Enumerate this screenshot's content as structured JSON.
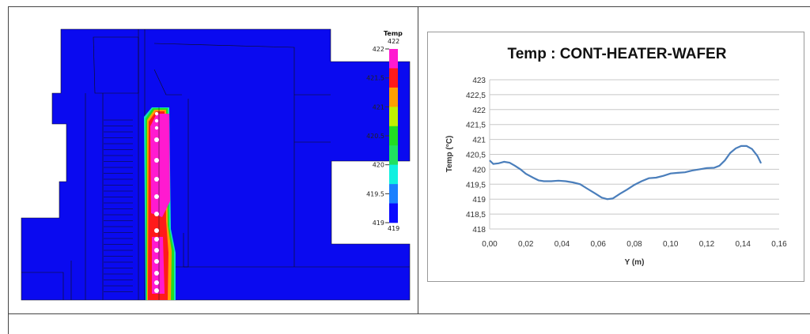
{
  "simulation": {
    "legend": {
      "title": "Temp",
      "max_label": "422",
      "min_label": "419",
      "ticks": [
        "422",
        "421.5",
        "421",
        "420.5",
        "420",
        "419.5",
        "419"
      ],
      "colors": [
        "#ff1ad0",
        "#ff1a1a",
        "#ff9f00",
        "#c0f000",
        "#22dd22",
        "#20e060",
        "#10f0e0",
        "#1a80ff",
        "#0a0aff"
      ]
    },
    "colors": {
      "background_solid": "#0a0af0",
      "hot": "#ff1ad0"
    }
  },
  "chart_data": {
    "type": "line",
    "title": "Temp : CONT-HEATER-WAFER",
    "xlabel": "Y (m)",
    "ylabel": "Temp (°C)",
    "xlim": [
      0,
      0.16
    ],
    "ylim": [
      418,
      423
    ],
    "x_ticks": [
      "0,00",
      "0,02",
      "0,04",
      "0,06",
      "0,08",
      "0,10",
      "0,12",
      "0,14",
      "0,16"
    ],
    "y_ticks": [
      "418",
      "418,5",
      "419",
      "419,5",
      "420",
      "420,5",
      "421",
      "421,5",
      "422",
      "422,5",
      "423"
    ],
    "grid": "horizontal",
    "line_color": "#4a7ebb",
    "x": [
      0.0,
      0.002,
      0.005,
      0.008,
      0.011,
      0.014,
      0.017,
      0.02,
      0.024,
      0.027,
      0.03,
      0.034,
      0.038,
      0.042,
      0.046,
      0.05,
      0.054,
      0.058,
      0.062,
      0.065,
      0.068,
      0.072,
      0.076,
      0.08,
      0.084,
      0.088,
      0.092,
      0.096,
      0.1,
      0.104,
      0.108,
      0.112,
      0.116,
      0.12,
      0.124,
      0.127,
      0.13,
      0.133,
      0.136,
      0.139,
      0.142,
      0.145,
      0.148,
      0.15
    ],
    "y": [
      420.3,
      420.18,
      420.2,
      420.25,
      420.22,
      420.12,
      420.0,
      419.85,
      419.72,
      419.63,
      419.6,
      419.6,
      419.62,
      419.6,
      419.56,
      419.5,
      419.35,
      419.2,
      419.05,
      419.0,
      419.02,
      419.18,
      419.32,
      419.48,
      419.6,
      419.7,
      419.72,
      419.78,
      419.86,
      419.88,
      419.9,
      419.96,
      420.0,
      420.04,
      420.05,
      420.12,
      420.3,
      420.55,
      420.7,
      420.78,
      420.78,
      420.68,
      420.45,
      420.2
    ]
  }
}
